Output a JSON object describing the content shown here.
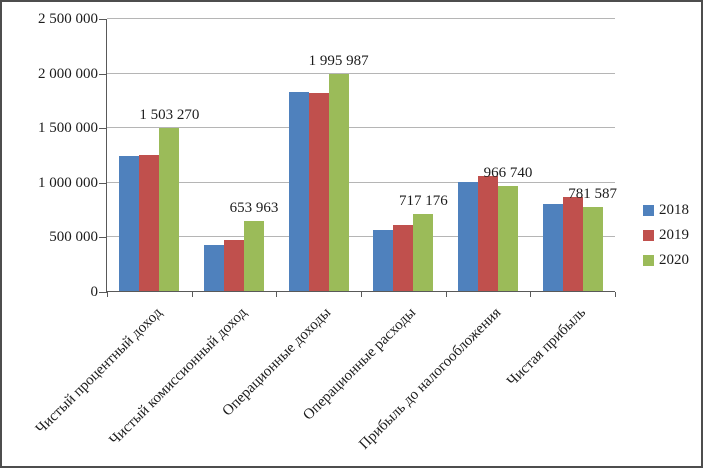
{
  "chart_data": {
    "type": "bar",
    "title": "",
    "xlabel": "",
    "ylabel": "",
    "categories": [
      "Чистый процентный доход",
      "Чистый комиссионный доход",
      "Операционные доходы",
      "Операционные расходы",
      "Прибыль до налогообложения",
      "Чистая прибыль"
    ],
    "series": [
      {
        "name": "2018",
        "color": "#4F81BD",
        "values": [
          1245000,
          430000,
          1835000,
          570000,
          1005000,
          810000
        ]
      },
      {
        "name": "2019",
        "color": "#C0504D",
        "values": [
          1255000,
          475000,
          1820000,
          615000,
          1060000,
          870000
        ]
      },
      {
        "name": "2020",
        "color": "#9BBB59",
        "values": [
          1503270,
          653963,
          1995987,
          717176,
          966740,
          781587
        ]
      }
    ],
    "data_labels": {
      "labeled_series": "2020",
      "labels": [
        "1 503 270",
        "653 963",
        "1 995 987",
        "717 176",
        "966 740",
        "781 587"
      ]
    },
    "ylim": [
      0,
      2500000
    ],
    "yticks": [
      {
        "label": "2 500 000",
        "value": 2500000
      },
      {
        "label": "2 000 000",
        "value": 2000000
      },
      {
        "label": "1 500 000",
        "value": 1500000
      },
      {
        "label": "1 000 000",
        "value": 1000000
      },
      {
        "label": "500 000",
        "value": 500000
      },
      {
        "label": "0",
        "value": 0
      }
    ],
    "grid": true,
    "legend_position": "right",
    "colors": {
      "gridline": "#b5b5b5",
      "axis": "#595959",
      "text": "#1c1c1c",
      "frame_border": "#4d4d4d",
      "background": "#ffffff"
    }
  }
}
